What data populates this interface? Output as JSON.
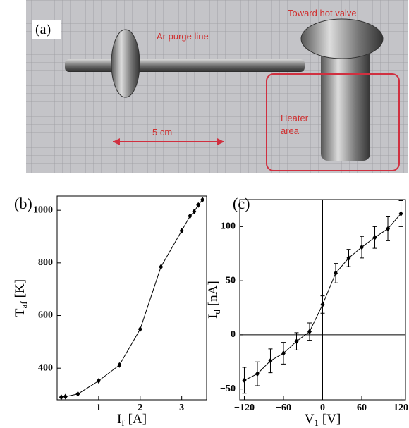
{
  "photo": {
    "label": "(a)",
    "top_right": "Toward  hot valve",
    "purge": "Ar purge line",
    "scale": "5 cm",
    "heater": [
      "Heater",
      "area"
    ]
  },
  "chart_data": [
    {
      "type": "line",
      "label": "(b)",
      "color": "#000000",
      "xlabel": {
        "text": "I",
        "sub": "f",
        "unit": "[A]"
      },
      "ylabel": {
        "text": "T",
        "sub": "af",
        "unit": "[K]"
      },
      "x": [
        0.1,
        0.2,
        0.5,
        1.0,
        1.5,
        2.0,
        2.5,
        3.0,
        3.2,
        3.3,
        3.4,
        3.5
      ],
      "values": [
        290,
        292,
        302,
        352,
        412,
        548,
        785,
        922,
        978,
        995,
        1020,
        1040
      ],
      "xlim": [
        0,
        3.6
      ],
      "ylim": [
        280,
        1054
      ],
      "xticks": [
        1,
        2,
        3
      ],
      "yticks": [
        400,
        600,
        800,
        1000
      ]
    },
    {
      "type": "errorline",
      "label": "(c)",
      "color": "#000000",
      "xlabel": {
        "text": "V",
        "sub": "1",
        "unit": "[V]"
      },
      "ylabel": {
        "text": "I",
        "sub": "d",
        "unit": "[nA]"
      },
      "x": [
        -120,
        -100,
        -80,
        -60,
        -40,
        -20,
        0,
        20,
        40,
        60,
        80,
        100,
        120
      ],
      "values": [
        -42,
        -36,
        -24,
        -17,
        -6,
        3,
        28,
        57,
        71,
        81,
        90,
        98,
        112
      ],
      "errors": [
        12,
        11,
        11,
        10,
        8,
        8,
        8,
        9,
        8,
        10,
        10,
        11,
        12
      ],
      "xlim": [
        -127,
        127
      ],
      "ylim": [
        -60,
        125
      ],
      "xticks": [
        {
          "value": -120,
          "label": "−120"
        },
        {
          "value": -60,
          "label": "−60"
        },
        0,
        60,
        120
      ],
      "yticks": [
        {
          "value": -50,
          "label": "−50"
        },
        0,
        50,
        100
      ],
      "zero_lines": true
    }
  ]
}
